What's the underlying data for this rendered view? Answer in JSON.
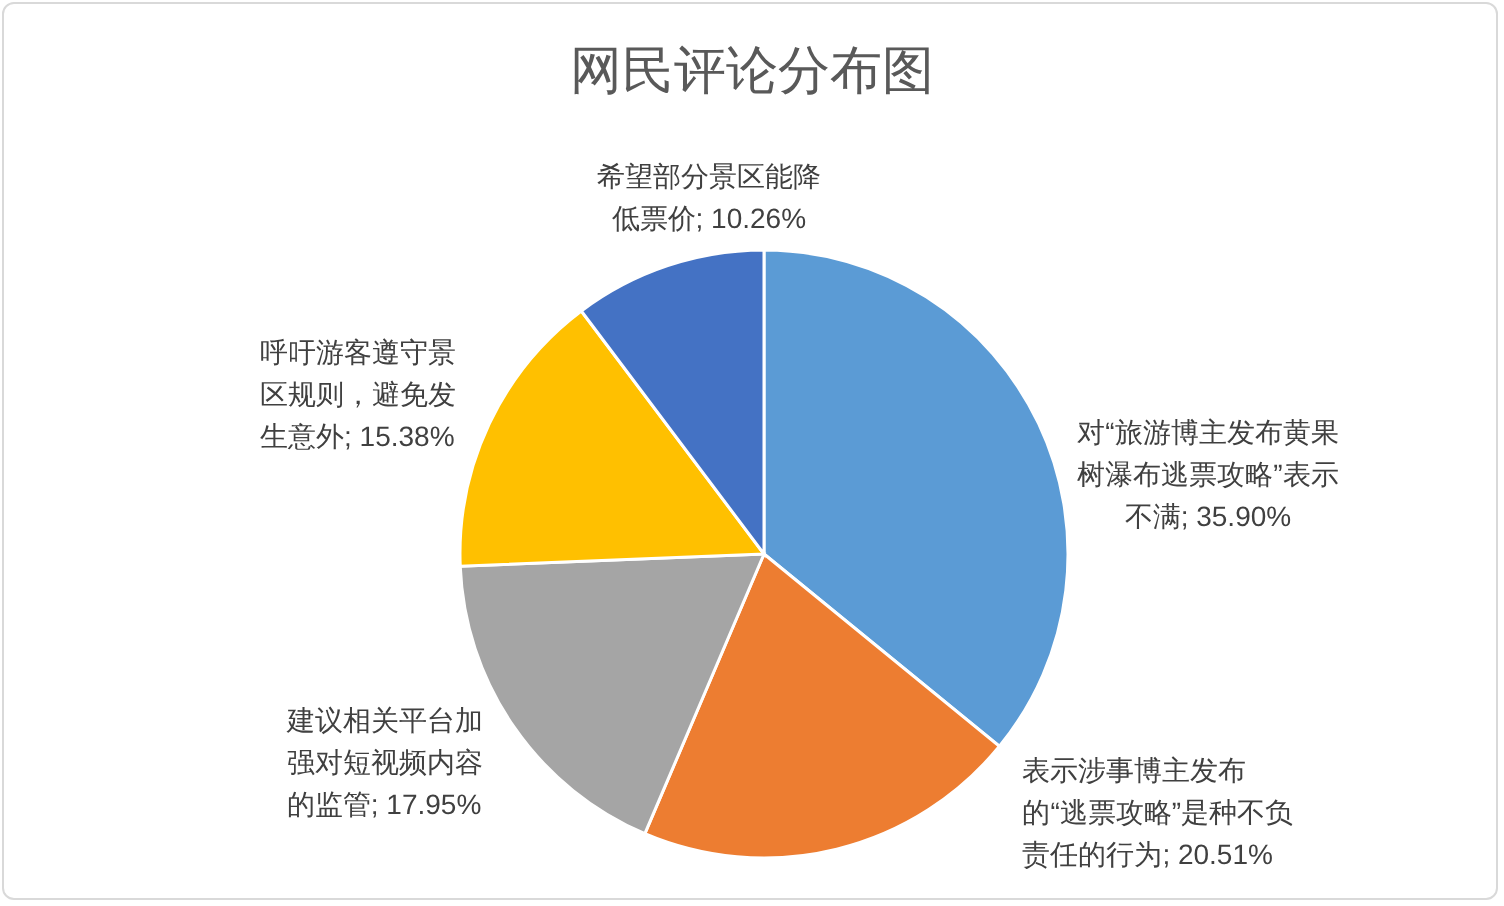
{
  "chart_data": {
    "type": "pie",
    "title": "网民评论分布图",
    "categories": [
      "对“旅游博主发布黄果树瀑布逃票攻略”表示不满",
      "表示涉事博主发布的“逃票攻略”是种不负责任的行为",
      "建议相关平台加强对短视频内容的监管",
      "呼吁游客遵守景区规则，避免发生意外",
      "希望部分景区能降低票价"
    ],
    "values": [
      35.9,
      20.51,
      17.95,
      15.38,
      10.26
    ],
    "value_labels": [
      "35.90%",
      "20.51%",
      "17.95%",
      "15.38%",
      "10.26%"
    ],
    "colors": [
      "#5b9bd5",
      "#ed7d31",
      "#a5a5a5",
      "#ffc000",
      "#4472c4"
    ]
  }
}
